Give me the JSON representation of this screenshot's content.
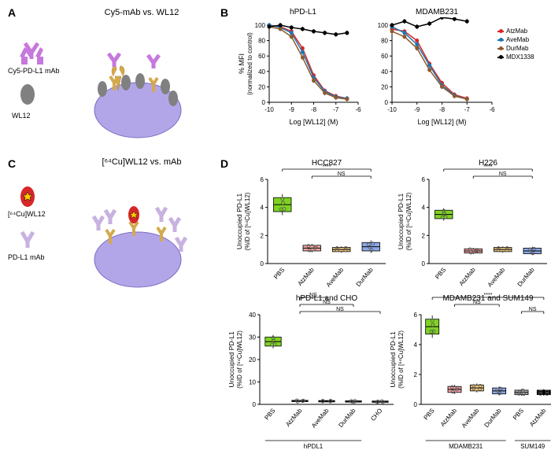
{
  "panelA": {
    "label": "A",
    "title": "Cy5-mAb vs. WL12",
    "cy5_label": "Cy5-PD-L1 mAb",
    "wl12_label": "WL12",
    "colors": {
      "antibody": "#c678dd",
      "wl12": "#808080",
      "cell": "#b3a6e8",
      "receptor": "#d4a94e"
    }
  },
  "panelB": {
    "label": "B",
    "chart1": {
      "title": "hPD-L1",
      "xlabel": "Log [WL12] (M)",
      "ylabel": "% MFI\n(normalized to control)",
      "xlim": [
        -10,
        -6
      ],
      "ylim": [
        0,
        100
      ],
      "xticks": [
        -10,
        -9,
        -8,
        -7,
        -6
      ],
      "yticks": [
        0,
        20,
        40,
        60,
        80,
        100
      ],
      "series": [
        {
          "name": "AtzMab",
          "color": "#d62728",
          "x": [
            -10,
            -9.5,
            -9,
            -8.5,
            -8,
            -7.5,
            -7,
            -6.5
          ],
          "y": [
            100,
            98,
            92,
            70,
            35,
            15,
            8,
            5
          ]
        },
        {
          "name": "AveMab",
          "color": "#1f77b4",
          "x": [
            -10,
            -9.5,
            -9,
            -8.5,
            -8,
            -7.5,
            -7,
            -6.5
          ],
          "y": [
            100,
            97,
            90,
            65,
            32,
            14,
            7,
            5
          ]
        },
        {
          "name": "DurMab",
          "color": "#8f5a2b",
          "x": [
            -10,
            -9.5,
            -9,
            -8.5,
            -8,
            -7.5,
            -7,
            -6.5
          ],
          "y": [
            98,
            95,
            85,
            58,
            28,
            12,
            6,
            4
          ]
        },
        {
          "name": "MDX1338",
          "color": "#000000",
          "x": [
            -10,
            -9.5,
            -9,
            -8.5,
            -8,
            -7.5,
            -7,
            -6.5
          ],
          "y": [
            98,
            100,
            97,
            95,
            92,
            90,
            88,
            90
          ]
        }
      ]
    },
    "chart2": {
      "title": "MDAMB231",
      "xlabel": "Log [WL12] (M)",
      "xlim": [
        -10,
        -6
      ],
      "ylim": [
        0,
        100
      ],
      "xticks": [
        -10,
        -9,
        -8,
        -7,
        -6
      ],
      "yticks": [
        0,
        20,
        40,
        60,
        80,
        100
      ],
      "series": [
        {
          "name": "AtzMab",
          "color": "#d62728",
          "x": [
            -10,
            -9.5,
            -9,
            -8.5,
            -8,
            -7.5,
            -7
          ],
          "y": [
            95,
            92,
            80,
            50,
            25,
            10,
            5
          ]
        },
        {
          "name": "AveMab",
          "color": "#1f77b4",
          "x": [
            -10,
            -9.5,
            -9,
            -8.5,
            -8,
            -7.5,
            -7
          ],
          "y": [
            98,
            90,
            75,
            48,
            22,
            9,
            4
          ]
        },
        {
          "name": "DurMab",
          "color": "#8f5a2b",
          "x": [
            -10,
            -9.5,
            -9,
            -8.5,
            -8,
            -7.5,
            -7
          ],
          "y": [
            92,
            85,
            70,
            42,
            20,
            8,
            4
          ]
        },
        {
          "name": "MDX1338",
          "color": "#000000",
          "x": [
            -10,
            -9.5,
            -9,
            -8.5,
            -8,
            -7.5,
            -7
          ],
          "y": [
            100,
            105,
            98,
            102,
            110,
            108,
            105
          ]
        }
      ]
    },
    "legend": [
      "AtzMab",
      "AveMab",
      "DurMab",
      "MDX1338"
    ],
    "legend_colors": [
      "#d62728",
      "#1f77b4",
      "#8f5a2b",
      "#000000"
    ]
  },
  "panelC": {
    "label": "C",
    "title": "[⁶⁴Cu]WL12 vs. mAb",
    "cu_label": "[⁶⁴Cu]WL12",
    "mab_label": "PD-L1 mAb",
    "colors": {
      "antibody": "#c8b2e0",
      "cu": "#d62728",
      "cell": "#b3a6e8",
      "receptor": "#d4a94e"
    }
  },
  "panelD": {
    "label": "D",
    "ylabel": "Unoccupied PD-L1\n(%ID of [⁶⁴Cu]WL12)",
    "charts": [
      {
        "title": "HCC827",
        "ylim": [
          0,
          6
        ],
        "yticks": [
          0,
          2,
          4,
          6
        ],
        "groups": [
          "PBS",
          "AtzMab",
          "AveMab",
          "DurMab"
        ],
        "values": [
          4.2,
          1.1,
          1.0,
          1.2
        ],
        "err": [
          0.5,
          0.2,
          0.15,
          0.3
        ],
        "colors": [
          "#7ed321",
          "#f5a6a6",
          "#f0c97a",
          "#8da8e8"
        ],
        "sig": [
          {
            "from": 0,
            "to": 3,
            "label": "****"
          },
          {
            "from": 1,
            "to": 3,
            "label": "NS"
          }
        ]
      },
      {
        "title": "H226",
        "ylim": [
          0,
          6
        ],
        "yticks": [
          0,
          2,
          4,
          6
        ],
        "groups": [
          "PBS",
          "AtzMab",
          "AveMab",
          "DurMab"
        ],
        "values": [
          3.5,
          0.9,
          1.0,
          0.9
        ],
        "err": [
          0.3,
          0.15,
          0.15,
          0.2
        ],
        "colors": [
          "#7ed321",
          "#f5a6a6",
          "#f0c97a",
          "#8da8e8"
        ],
        "sig": [
          {
            "from": 0,
            "to": 3,
            "label": "****"
          },
          {
            "from": 1,
            "to": 3,
            "label": "NS"
          }
        ]
      },
      {
        "title": "hPD-L1 and CHO",
        "ylim": [
          0,
          40
        ],
        "yticks": [
          0,
          10,
          20,
          30,
          40
        ],
        "groups": [
          "PBS",
          "AtzMab",
          "AveMab",
          "DurMab",
          "CHO"
        ],
        "values": [
          28,
          1.5,
          1.4,
          1.3,
          1.2
        ],
        "err": [
          2,
          0.3,
          0.3,
          0.3,
          0.3
        ],
        "colors": [
          "#7ed321",
          "#f5a6a6",
          "#f0c97a",
          "#8da8e8",
          "#b0b0b0"
        ],
        "sig": [
          {
            "from": 0,
            "to": 4,
            "label": "****"
          },
          {
            "from": 1,
            "to": 2,
            "label": "NS"
          },
          {
            "from": 1,
            "to": 3,
            "label": "NS"
          },
          {
            "from": 1,
            "to": 4,
            "label": "NS"
          }
        ],
        "xannot": "hPDL1"
      },
      {
        "title": "MDAMB231 and SUM149",
        "ylim": [
          0,
          6
        ],
        "yticks": [
          0,
          2,
          4,
          6
        ],
        "groups": [
          "PBS",
          "AtzMab",
          "AveMab",
          "DurMab",
          "PBS",
          "AtzMab"
        ],
        "values": [
          5.2,
          1.0,
          1.1,
          0.9,
          0.8,
          0.8
        ],
        "err": [
          0.5,
          0.2,
          0.2,
          0.2,
          0.15,
          0.15
        ],
        "colors": [
          "#7ed321",
          "#f5a6a6",
          "#f0c97a",
          "#8da8e8",
          "#b0b0b0",
          "#000000"
        ],
        "sig": [
          {
            "from": 0,
            "to": 5,
            "label": "****"
          },
          {
            "from": 1,
            "to": 3,
            "label": "NS"
          },
          {
            "from": 4,
            "to": 5,
            "label": "NS"
          }
        ],
        "xannot1": "MDAMB231",
        "xannot2": "SUM149"
      }
    ]
  }
}
